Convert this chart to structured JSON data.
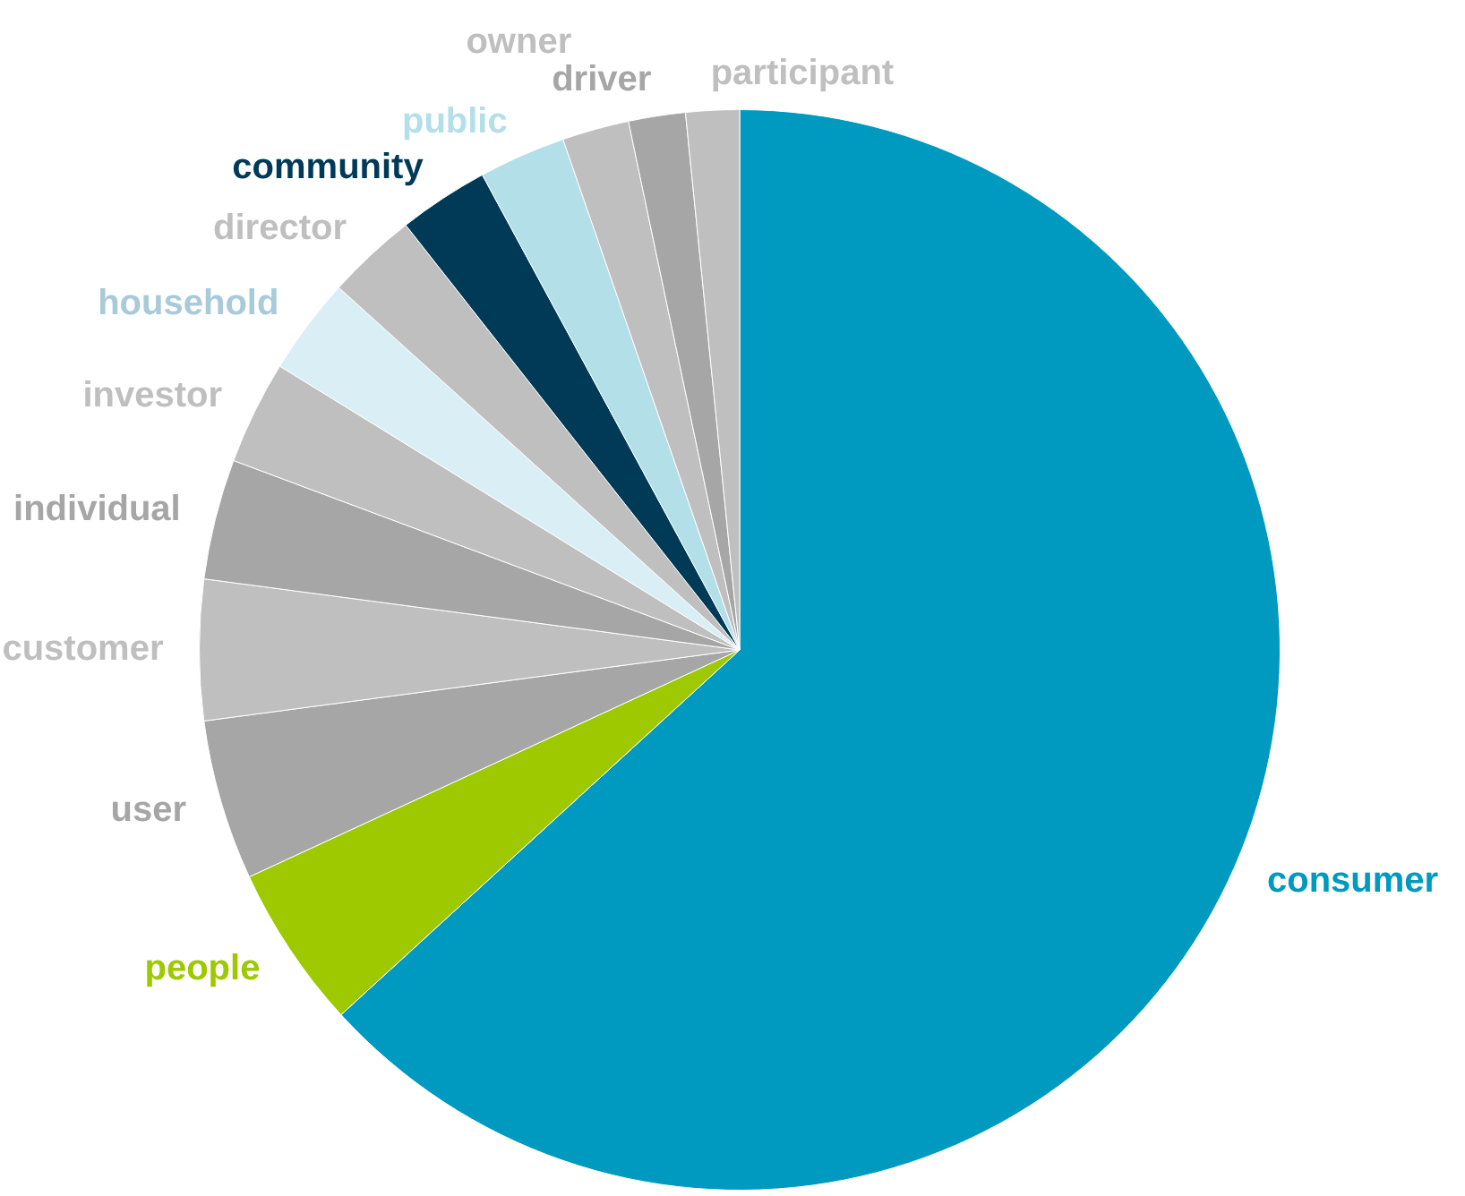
{
  "chart_data": {
    "type": "pie",
    "categories": [
      "consumer",
      "people",
      "user",
      "customer",
      "individual",
      "investor",
      "household",
      "director",
      "community",
      "public",
      "owner",
      "driver",
      "participant"
    ],
    "values": [
      63.2,
      4.9,
      4.8,
      4.2,
      3.6,
      3.1,
      2.9,
      2.7,
      2.7,
      2.6,
      2.0,
      1.7,
      1.6
    ],
    "colors": [
      "#0099c0",
      "#9ec800",
      "#a6a6a6",
      "#bfbfbf",
      "#a6a6a6",
      "#bfbfbf",
      "#d9eef5",
      "#bfbfbf",
      "#003a57",
      "#b3dfe9",
      "#bfbfbf",
      "#a6a6a6",
      "#bfbfbf"
    ],
    "legend": false
  }
}
